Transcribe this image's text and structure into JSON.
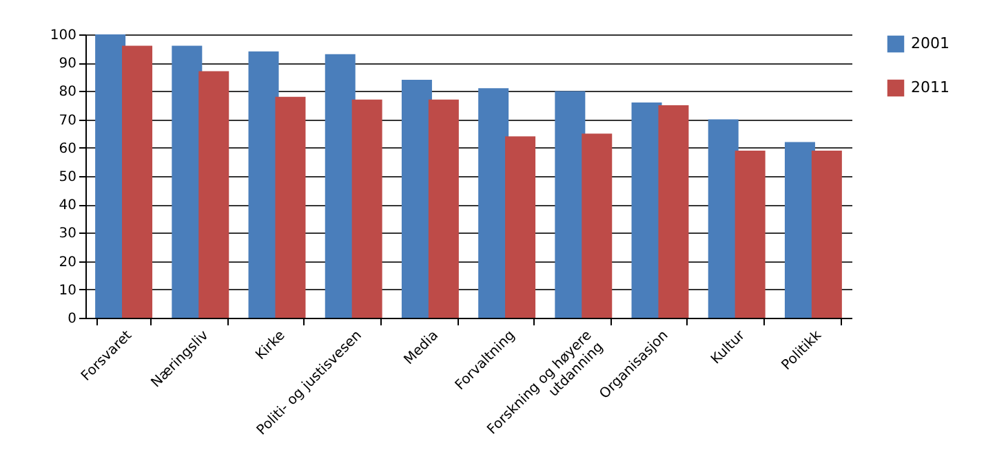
{
  "chart_data": {
    "type": "bar",
    "categories": [
      "Forsvaret",
      "Næringsliv",
      "Kirke",
      "Politi- og justisvesen",
      "Media",
      "Forvaltning",
      "Forskning og  høyere\nutdanning",
      "Organisasjon",
      "Kultur",
      "Politikk"
    ],
    "series": [
      {
        "name": "2001",
        "color": "#4a7ebb",
        "values": [
          100,
          96,
          94,
          93,
          84,
          81,
          80,
          76,
          70,
          62
        ]
      },
      {
        "name": "2011",
        "color": "#be4b48",
        "values": [
          96,
          87,
          78,
          77,
          77,
          64,
          65,
          75,
          59,
          59
        ]
      }
    ],
    "ylim": [
      0,
      100
    ],
    "yticks": [
      0,
      10,
      20,
      30,
      40,
      50,
      60,
      70,
      80,
      90,
      100
    ],
    "grid": "y",
    "legend": "right"
  }
}
